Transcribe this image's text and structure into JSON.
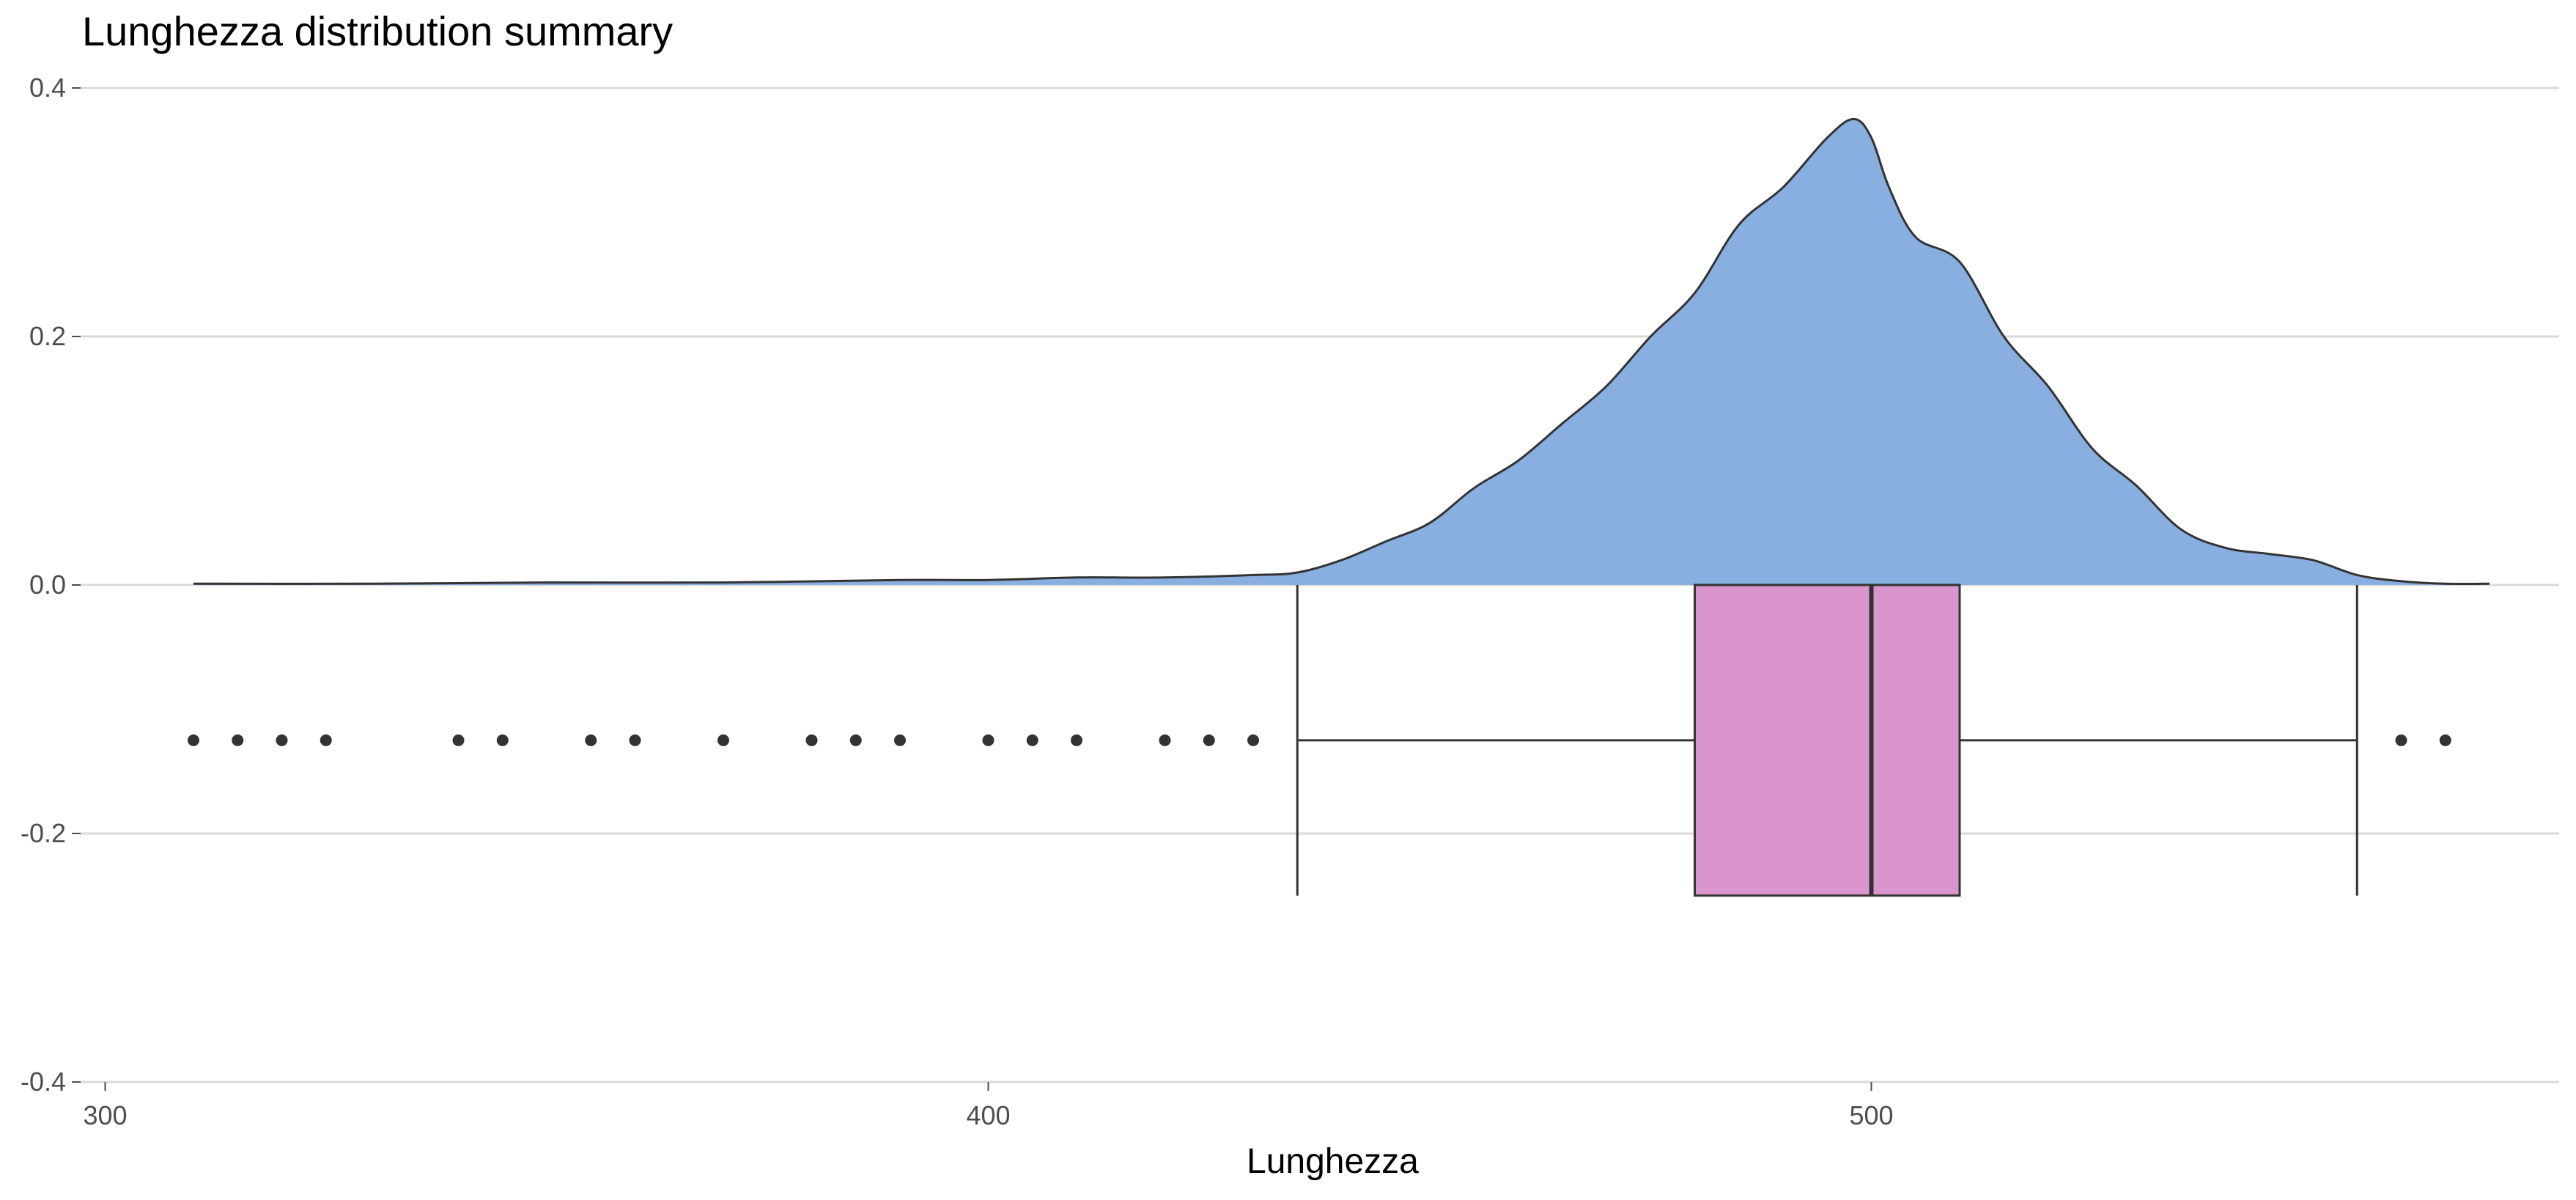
{
  "chart_data": {
    "type": "density_boxplot",
    "title": "Lunghezza distribution summary",
    "xlabel": "Lunghezza",
    "ylabel": "",
    "xlim": [
      299,
      580
    ],
    "ylim": [
      -0.4,
      0.4
    ],
    "x_ticks": [
      300,
      400,
      500
    ],
    "x_tick_labels": [
      "300",
      "400",
      "500"
    ],
    "y_ticks": [
      -0.4,
      -0.2,
      0.0,
      0.2,
      0.4
    ],
    "y_tick_labels": [
      "-0.4",
      "-0.2",
      "0.0",
      "0.2",
      "0.4"
    ],
    "grid": "horizontal",
    "density": {
      "fill": "#89aee0",
      "stroke": "#333333",
      "x": [
        310,
        330,
        350,
        370,
        390,
        400,
        410,
        420,
        430,
        435,
        440,
        445,
        450,
        455,
        460,
        465,
        470,
        475,
        480,
        485,
        490,
        495,
        498,
        500,
        502,
        505,
        510,
        515,
        520,
        525,
        530,
        535,
        540,
        545,
        550,
        555,
        560,
        565,
        570
      ],
      "y": [
        0.001,
        0.001,
        0.002,
        0.002,
        0.004,
        0.004,
        0.006,
        0.006,
        0.008,
        0.01,
        0.02,
        0.035,
        0.05,
        0.078,
        0.1,
        0.13,
        0.16,
        0.2,
        0.235,
        0.29,
        0.32,
        0.36,
        0.375,
        0.36,
        0.32,
        0.28,
        0.26,
        0.2,
        0.16,
        0.11,
        0.08,
        0.045,
        0.03,
        0.025,
        0.02,
        0.008,
        0.003,
        0.001,
        0.001
      ]
    },
    "boxplot": {
      "fill": "#da95cd",
      "stroke": "#333333",
      "y_center": -0.125,
      "y_bottom": -0.25,
      "y_top": 0.0,
      "whisker_low": 435,
      "q1": 480,
      "median": 500,
      "q3": 510,
      "whisker_high": 555,
      "outliers": [
        310,
        315,
        320,
        325,
        340,
        345,
        355,
        360,
        370,
        380,
        385,
        390,
        400,
        405,
        410,
        420,
        425,
        430,
        560,
        565
      ]
    }
  }
}
